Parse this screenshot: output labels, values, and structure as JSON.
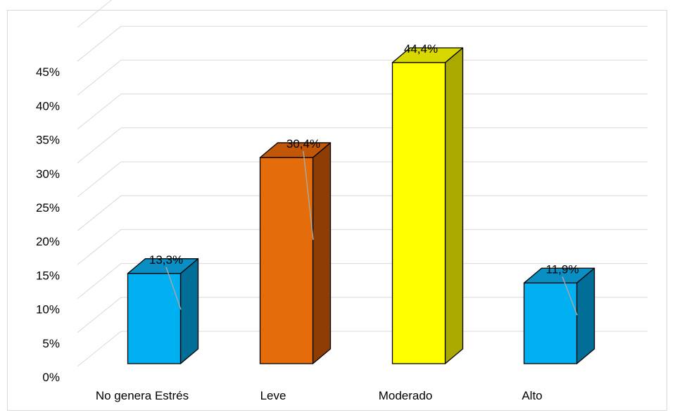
{
  "chart_data": {
    "type": "bar",
    "style": "3d-column",
    "categories": [
      "No genera Estrés",
      "Leve",
      "Moderado",
      "Alto"
    ],
    "values": [
      13.3,
      30.4,
      44.4,
      11.9
    ],
    "data_labels": [
      "13,3%",
      "30,4%",
      "44,4%",
      "11,9%"
    ],
    "y_ticks": [
      0,
      5,
      10,
      15,
      20,
      25,
      30,
      35,
      40,
      45
    ],
    "y_tick_labels": [
      "0%",
      "5%",
      "10%",
      "15%",
      "20%",
      "25%",
      "30%",
      "35%",
      "40%",
      "45%"
    ],
    "ylim": [
      0,
      50
    ],
    "grid": true,
    "legend": "none",
    "title": "",
    "xlabel": "",
    "ylabel": "",
    "colors": {
      "front": [
        "#00B0F0",
        "#E46C0A",
        "#FFFF00",
        "#00B0F0"
      ],
      "side": [
        "#006E96",
        "#8E3D05",
        "#A9A900",
        "#006E96"
      ],
      "top": [
        "#0A8FC4",
        "#C25807",
        "#D8D800",
        "#0A8FC4"
      ],
      "grid": "#d9d9d9",
      "leader": "#a6a6a6",
      "outline": "#000000"
    }
  }
}
